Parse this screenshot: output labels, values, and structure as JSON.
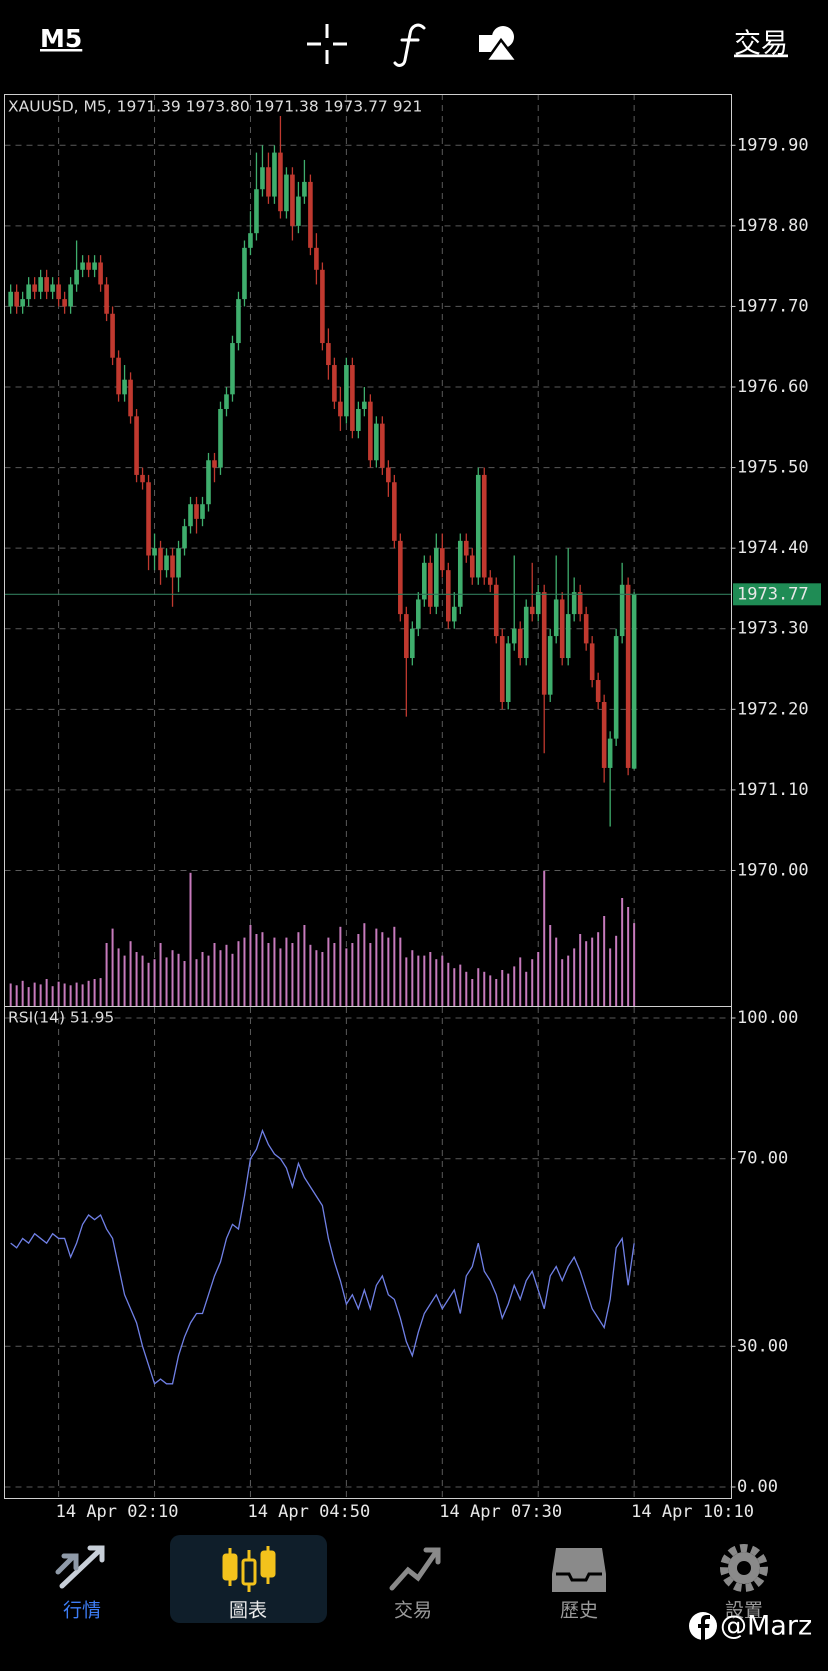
{
  "header": {
    "timeframe": "M5",
    "trade": "交易"
  },
  "chart_data": [
    {
      "type": "candlestick",
      "title": "XAUUSD, M5, 1971.39 1973.80 1971.38 1973.77 921",
      "categories": [
        null,
        null,
        null,
        null,
        null,
        null,
        null,
        null,
        "14 Apr 02:10",
        null,
        null,
        null,
        null,
        null,
        null,
        null,
        null,
        null,
        null,
        null,
        null,
        null,
        null,
        null,
        null,
        null,
        null,
        null,
        null,
        null,
        null,
        null,
        null,
        null,
        null,
        null,
        null,
        null,
        null,
        null,
        "14 Apr 04:50",
        null,
        null,
        null,
        null,
        null,
        null,
        null,
        null,
        null,
        null,
        null,
        null,
        null,
        null,
        null,
        null,
        null,
        null,
        null,
        null,
        null,
        null,
        null,
        null,
        null,
        null,
        null,
        null,
        null,
        null,
        null,
        "14 Apr 07:30",
        null,
        null,
        null,
        null,
        null,
        null,
        null,
        null,
        null,
        null,
        null,
        null,
        null,
        null,
        null,
        null,
        null,
        null,
        null,
        null,
        null,
        null,
        null,
        null,
        null,
        null,
        null,
        null,
        null,
        null,
        null,
        "14 Apr 10:10"
      ],
      "open": [
        1977.7,
        1977.9,
        1977.7,
        1977.8,
        1978.0,
        1977.9,
        1978.1,
        1977.9,
        1978.0,
        1977.8,
        1977.7,
        1978.0,
        1978.2,
        1978.3,
        1978.2,
        1978.3,
        1978.0,
        1977.6,
        1977.0,
        1976.5,
        1976.7,
        1976.2,
        1975.4,
        1975.3,
        1974.3,
        1974.4,
        1974.1,
        1974.3,
        1974.0,
        1974.4,
        1974.7,
        1975.0,
        1974.8,
        1975.0,
        1975.6,
        1975.5,
        1976.3,
        1976.5,
        1977.2,
        1977.8,
        1978.5,
        1978.7,
        1979.3,
        1979.6,
        1979.2,
        1979.8,
        1979.0,
        1979.5,
        1978.8,
        1979.2,
        1979.4,
        1978.5,
        1978.2,
        1977.2,
        1976.9,
        1976.4,
        1976.2,
        1976.9,
        1976.0,
        1976.3,
        1976.4,
        1975.6,
        1976.1,
        1975.5,
        1975.3,
        1974.5,
        1973.5,
        1972.9,
        1973.3,
        1973.7,
        1974.2,
        1973.6,
        1974.4,
        1974.1,
        1973.4,
        1973.6,
        1974.5,
        1974.3,
        1974.0,
        1975.4,
        1974.0,
        1973.9,
        1973.2,
        1972.3,
        1973.1,
        1973.3,
        1972.9,
        1973.6,
        1973.5,
        1973.8,
        1972.4,
        1973.2,
        1973.7,
        1972.9,
        1973.5,
        1973.8,
        1973.5,
        1973.1,
        1972.6,
        1972.3,
        1971.4,
        1971.8,
        1973.2,
        1973.9,
        1971.39
      ],
      "high": [
        1978.0,
        1978.0,
        1977.9,
        1978.1,
        1978.1,
        1978.2,
        1978.2,
        1978.1,
        1978.1,
        1977.9,
        1978.1,
        1978.6,
        1978.4,
        1978.4,
        1978.4,
        1978.4,
        1978.1,
        1977.7,
        1977.1,
        1976.9,
        1976.8,
        1976.3,
        1975.5,
        1975.4,
        1974.6,
        1974.5,
        1974.4,
        1974.4,
        1974.5,
        1974.8,
        1975.1,
        1975.1,
        1975.1,
        1975.7,
        1975.7,
        1976.4,
        1976.6,
        1977.3,
        1977.9,
        1978.6,
        1979.0,
        1979.8,
        1979.9,
        1979.8,
        1979.9,
        1980.3,
        1979.6,
        1979.6,
        1979.4,
        1979.7,
        1979.5,
        1978.7,
        1978.3,
        1977.4,
        1977.0,
        1976.6,
        1977.0,
        1977.0,
        1976.4,
        1976.6,
        1976.5,
        1976.2,
        1976.2,
        1975.6,
        1975.4,
        1974.6,
        1973.6,
        1973.4,
        1973.8,
        1974.3,
        1974.3,
        1974.6,
        1974.6,
        1974.2,
        1973.8,
        1974.6,
        1974.6,
        1974.4,
        1975.5,
        1975.5,
        1974.1,
        1974.0,
        1973.3,
        1973.2,
        1974.3,
        1973.4,
        1973.7,
        1974.2,
        1973.9,
        1973.9,
        1973.3,
        1974.3,
        1973.8,
        1974.4,
        1974.0,
        1973.9,
        1973.6,
        1973.2,
        1972.7,
        1972.4,
        1971.9,
        1973.3,
        1974.2,
        1974.0,
        1973.8
      ],
      "low": [
        1977.6,
        1977.6,
        1977.6,
        1977.7,
        1977.8,
        1977.8,
        1977.8,
        1977.8,
        1977.7,
        1977.6,
        1977.6,
        1977.9,
        1978.1,
        1978.1,
        1978.1,
        1977.9,
        1977.5,
        1976.9,
        1976.4,
        1976.4,
        1976.1,
        1975.3,
        1975.2,
        1974.1,
        1974.1,
        1973.9,
        1974.0,
        1973.6,
        1973.8,
        1974.3,
        1974.6,
        1974.6,
        1974.7,
        1974.9,
        1975.3,
        1975.4,
        1976.2,
        1976.4,
        1977.1,
        1977.7,
        1978.4,
        1978.6,
        1979.2,
        1979.1,
        1979.1,
        1978.9,
        1978.9,
        1978.6,
        1978.7,
        1979.1,
        1978.4,
        1978.0,
        1977.1,
        1976.7,
        1976.3,
        1976.0,
        1976.1,
        1975.9,
        1975.9,
        1976.2,
        1975.5,
        1975.5,
        1975.4,
        1975.1,
        1974.4,
        1973.4,
        1972.1,
        1972.8,
        1973.2,
        1973.6,
        1973.5,
        1973.5,
        1974.0,
        1973.3,
        1973.3,
        1973.5,
        1974.2,
        1973.9,
        1973.9,
        1973.9,
        1973.8,
        1973.1,
        1972.2,
        1972.2,
        1973.0,
        1972.8,
        1972.8,
        1973.4,
        1973.4,
        1971.6,
        1972.3,
        1973.1,
        1972.8,
        1972.8,
        1973.4,
        1973.4,
        1973.0,
        1972.5,
        1972.2,
        1971.2,
        1970.6,
        1971.7,
        1973.1,
        1971.3,
        1971.38
      ],
      "close": [
        1977.9,
        1977.7,
        1977.8,
        1978.0,
        1977.9,
        1978.1,
        1977.9,
        1978.0,
        1977.8,
        1977.7,
        1978.0,
        1978.2,
        1978.3,
        1978.2,
        1978.3,
        1978.0,
        1977.6,
        1977.0,
        1976.5,
        1976.7,
        1976.2,
        1975.4,
        1975.3,
        1974.3,
        1974.4,
        1974.1,
        1974.3,
        1974.0,
        1974.4,
        1974.7,
        1975.0,
        1974.8,
        1975.0,
        1975.6,
        1975.5,
        1976.3,
        1976.5,
        1977.2,
        1977.8,
        1978.5,
        1978.7,
        1979.3,
        1979.6,
        1979.2,
        1979.8,
        1979.0,
        1979.5,
        1978.8,
        1979.2,
        1979.4,
        1978.5,
        1978.2,
        1977.2,
        1976.9,
        1976.4,
        1976.2,
        1976.9,
        1976.0,
        1976.3,
        1976.4,
        1975.6,
        1976.1,
        1975.5,
        1975.3,
        1974.5,
        1973.5,
        1972.9,
        1973.3,
        1973.7,
        1974.2,
        1973.6,
        1974.4,
        1974.1,
        1973.4,
        1973.6,
        1974.5,
        1974.3,
        1974.0,
        1975.4,
        1974.0,
        1973.9,
        1973.2,
        1972.3,
        1973.1,
        1973.3,
        1972.9,
        1973.6,
        1973.5,
        1973.8,
        1972.4,
        1973.2,
        1973.7,
        1972.9,
        1973.5,
        1973.8,
        1973.5,
        1973.1,
        1972.6,
        1972.3,
        1971.4,
        1971.8,
        1973.2,
        1973.9,
        1971.4,
        1973.77
      ],
      "volume": [
        250,
        230,
        280,
        210,
        260,
        240,
        300,
        220,
        270,
        250,
        230,
        260,
        240,
        280,
        300,
        310,
        700,
        860,
        640,
        560,
        720,
        600,
        560,
        480,
        520,
        700,
        540,
        620,
        580,
        500,
        1480,
        520,
        600,
        560,
        700,
        620,
        680,
        580,
        720,
        760,
        900,
        800,
        820,
        700,
        760,
        640,
        760,
        700,
        820,
        900,
        680,
        620,
        600,
        760,
        700,
        880,
        640,
        700,
        800,
        920,
        700,
        860,
        820,
        760,
        880,
        760,
        540,
        620,
        560,
        560,
        600,
        520,
        560,
        480,
        420,
        460,
        380,
        300,
        420,
        380,
        340,
        300,
        400,
        360,
        440,
        540,
        380,
        520,
        600,
        1500,
        900,
        760,
        520,
        560,
        640,
        800,
        720,
        760,
        820,
        1000,
        640,
        780,
        1200,
        1100,
        921
      ],
      "ylim": [
        1968.15,
        1980.6
      ],
      "yticks": [
        {
          "value": 1979.9,
          "label": "1979.90"
        },
        {
          "value": 1978.8,
          "label": "1978.80"
        },
        {
          "value": 1977.7,
          "label": "1977.70"
        },
        {
          "value": 1976.6,
          "label": "1976.60"
        },
        {
          "value": 1975.5,
          "label": "1975.50"
        },
        {
          "value": 1974.4,
          "label": "1974.40"
        },
        {
          "value": 1973.3,
          "label": "1973.30"
        },
        {
          "value": 1972.2,
          "label": "1972.20"
        },
        {
          "value": 1971.1,
          "label": "1971.10"
        },
        {
          "value": 1970.0,
          "label": "1970.00"
        }
      ],
      "up_color": "#3fae6d",
      "down_color": "#c0392f",
      "volume_color": "#c77bbd",
      "price_line_color": "#2f7a5a",
      "grid": true
    },
    {
      "type": "line",
      "title": "RSI(14) 51.95",
      "values": [
        52,
        51,
        53,
        52,
        54,
        53,
        52,
        54,
        53,
        53,
        49,
        52,
        56,
        58,
        57,
        58,
        55,
        53,
        47,
        41,
        38,
        35,
        30,
        26,
        22,
        23,
        22,
        22,
        28,
        32,
        35,
        37,
        37,
        41,
        45,
        48,
        53,
        56,
        55,
        62,
        70,
        72,
        76,
        73,
        71,
        70,
        68,
        64,
        69,
        66,
        64,
        62,
        60,
        53,
        48,
        44,
        39,
        41,
        38,
        42,
        38,
        43,
        45,
        41,
        40,
        36,
        31,
        28,
        33,
        37,
        39,
        41,
        38,
        40,
        42,
        37,
        45,
        47,
        52,
        46,
        44,
        41,
        36,
        39,
        43,
        40,
        44,
        46,
        42,
        38,
        45,
        47,
        44,
        47,
        49,
        46,
        42,
        38,
        36,
        34,
        40,
        51,
        53,
        43,
        51.95
      ],
      "color": "#7080e6",
      "ylim": [
        0,
        100
      ],
      "yticks": [
        {
          "value": 100,
          "label": "100.00"
        },
        {
          "value": 70,
          "label": "70.00"
        },
        {
          "value": 30,
          "label": "30.00"
        },
        {
          "value": 0,
          "label": "0.00"
        }
      ],
      "grid": true
    }
  ],
  "nav": {
    "tabs": [
      "行情",
      "圖表",
      "交易",
      "歷史",
      "設置"
    ]
  },
  "watermark": "@Marz"
}
